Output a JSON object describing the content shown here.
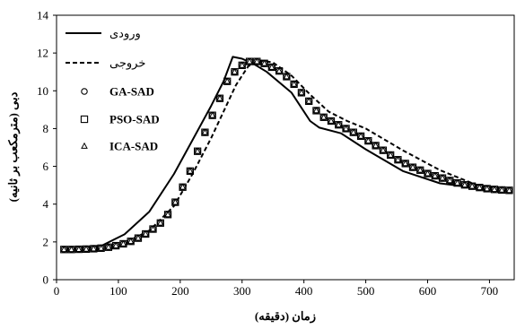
{
  "chart_data": {
    "type": "line",
    "title": "",
    "xlabel": "زمان (دقیقه)",
    "ylabel": "دبی (مترمکعب بر ثانیه)",
    "xlim": [
      0,
      740
    ],
    "ylim": [
      0,
      14
    ],
    "xticks": [
      0,
      100,
      200,
      300,
      400,
      500,
      600,
      700
    ],
    "yticks": [
      0,
      2,
      4,
      6,
      8,
      10,
      12,
      14
    ],
    "grid": false,
    "legend_position": "top-left",
    "series": [
      {
        "name": "ورودی",
        "style": "solid-line",
        "color": "#000000",
        "x": [
          12,
          70,
          110,
          150,
          190,
          220,
          250,
          270,
          285,
          300,
          320,
          340,
          380,
          410,
          425,
          460,
          500,
          560,
          620,
          680,
          730
        ],
        "y": [
          1.6,
          1.75,
          2.4,
          3.6,
          5.6,
          7.4,
          9.2,
          10.5,
          11.8,
          11.7,
          11.4,
          11.0,
          9.9,
          8.4,
          8.05,
          7.75,
          6.9,
          5.75,
          5.1,
          4.85,
          4.75
        ]
      },
      {
        "name": "خروجی",
        "style": "dashed-line",
        "color": "#000000",
        "x": [
          12,
          70,
          110,
          150,
          190,
          220,
          250,
          270,
          290,
          310,
          330,
          350,
          380,
          410,
          440,
          470,
          500,
          560,
          620,
          680,
          730
        ],
        "y": [
          1.6,
          1.65,
          1.95,
          2.6,
          3.9,
          5.6,
          7.5,
          8.9,
          10.3,
          11.3,
          11.6,
          11.5,
          10.8,
          9.8,
          8.9,
          8.4,
          8.0,
          6.85,
          5.8,
          5.0,
          4.75
        ]
      },
      {
        "name": "GA-SAD",
        "style": "circle-markers",
        "color": "#000000",
        "x": [
          12,
          24,
          36,
          48,
          60,
          72,
          84,
          96,
          108,
          120,
          132,
          144,
          156,
          168,
          180,
          192,
          204,
          216,
          228,
          240,
          252,
          264,
          276,
          288,
          300,
          312,
          324,
          336,
          348,
          360,
          372,
          384,
          396,
          408,
          420,
          432,
          444,
          456,
          468,
          480,
          492,
          504,
          516,
          528,
          540,
          552,
          564,
          576,
          588,
          600,
          612,
          624,
          636,
          648,
          660,
          672,
          684,
          696,
          708,
          720,
          732
        ],
        "y": [
          1.6,
          1.6,
          1.61,
          1.62,
          1.64,
          1.67,
          1.72,
          1.8,
          1.9,
          2.03,
          2.2,
          2.42,
          2.68,
          3.0,
          3.45,
          4.1,
          4.9,
          5.75,
          6.8,
          7.8,
          8.7,
          9.6,
          10.5,
          11.0,
          11.35,
          11.55,
          11.55,
          11.45,
          11.25,
          11.05,
          10.75,
          10.35,
          9.9,
          9.45,
          8.95,
          8.6,
          8.4,
          8.2,
          8.0,
          7.8,
          7.6,
          7.35,
          7.1,
          6.85,
          6.6,
          6.35,
          6.15,
          5.95,
          5.8,
          5.62,
          5.5,
          5.38,
          5.25,
          5.12,
          5.02,
          4.95,
          4.88,
          4.82,
          4.78,
          4.75,
          4.73
        ]
      },
      {
        "name": "PSO-SAD",
        "style": "square-markers",
        "color": "#000000",
        "x": [
          12,
          24,
          36,
          48,
          60,
          72,
          84,
          96,
          108,
          120,
          132,
          144,
          156,
          168,
          180,
          192,
          204,
          216,
          228,
          240,
          252,
          264,
          276,
          288,
          300,
          312,
          324,
          336,
          348,
          360,
          372,
          384,
          396,
          408,
          420,
          432,
          444,
          456,
          468,
          480,
          492,
          504,
          516,
          528,
          540,
          552,
          564,
          576,
          588,
          600,
          612,
          624,
          636,
          648,
          660,
          672,
          684,
          696,
          708,
          720,
          732
        ],
        "y": [
          1.6,
          1.6,
          1.61,
          1.62,
          1.64,
          1.67,
          1.72,
          1.8,
          1.9,
          2.03,
          2.2,
          2.42,
          2.68,
          3.0,
          3.45,
          4.1,
          4.9,
          5.75,
          6.8,
          7.8,
          8.7,
          9.6,
          10.5,
          11.0,
          11.35,
          11.55,
          11.55,
          11.45,
          11.25,
          11.05,
          10.75,
          10.35,
          9.9,
          9.45,
          8.95,
          8.6,
          8.4,
          8.2,
          8.0,
          7.8,
          7.6,
          7.35,
          7.1,
          6.85,
          6.6,
          6.35,
          6.15,
          5.95,
          5.8,
          5.62,
          5.5,
          5.38,
          5.25,
          5.12,
          5.02,
          4.95,
          4.88,
          4.82,
          4.78,
          4.75,
          4.73
        ]
      },
      {
        "name": "ICA-SAD",
        "style": "triangle-markers",
        "color": "#000000",
        "x": [
          12,
          24,
          36,
          48,
          60,
          72,
          84,
          96,
          108,
          120,
          132,
          144,
          156,
          168,
          180,
          192,
          204,
          216,
          228,
          240,
          252,
          264,
          276,
          288,
          300,
          312,
          324,
          336,
          348,
          360,
          372,
          384,
          396,
          408,
          420,
          432,
          444,
          456,
          468,
          480,
          492,
          504,
          516,
          528,
          540,
          552,
          564,
          576,
          588,
          600,
          612,
          624,
          636,
          648,
          660,
          672,
          684,
          696,
          708,
          720,
          732
        ],
        "y": [
          1.6,
          1.6,
          1.61,
          1.62,
          1.64,
          1.67,
          1.72,
          1.8,
          1.9,
          2.03,
          2.2,
          2.42,
          2.68,
          3.0,
          3.45,
          4.1,
          4.9,
          5.75,
          6.8,
          7.8,
          8.7,
          9.6,
          10.5,
          11.0,
          11.35,
          11.55,
          11.55,
          11.45,
          11.25,
          11.05,
          10.75,
          10.35,
          9.9,
          9.45,
          8.95,
          8.6,
          8.4,
          8.2,
          8.0,
          7.8,
          7.6,
          7.35,
          7.1,
          6.85,
          6.6,
          6.35,
          6.15,
          5.95,
          5.8,
          5.62,
          5.5,
          5.38,
          5.25,
          5.12,
          5.02,
          4.95,
          4.88,
          4.82,
          4.78,
          4.75,
          4.73
        ]
      }
    ]
  }
}
